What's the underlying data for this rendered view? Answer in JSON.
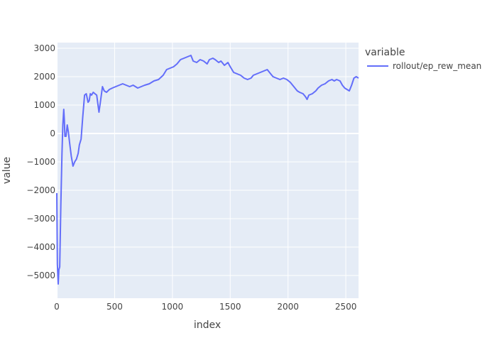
{
  "chart_data": {
    "type": "line",
    "xlabel": "index",
    "ylabel": "value",
    "xlim": [
      0,
      2610
    ],
    "ylim": [
      -5800,
      3200
    ],
    "x_ticks": [
      0,
      500,
      1000,
      1500,
      2000,
      2500
    ],
    "y_ticks": [
      -5000,
      -4000,
      -3000,
      -2000,
      -1000,
      0,
      1000,
      2000,
      3000
    ],
    "x_tick_labels": [
      "0",
      "500",
      "1000",
      "1500",
      "2000",
      "2500"
    ],
    "y_tick_labels": [
      "−5000",
      "−4000",
      "−3000",
      "−2000",
      "−1000",
      "0",
      "1000",
      "2000",
      "3000"
    ],
    "grid": true,
    "legend": {
      "title": "variable",
      "placement": "top-right-outside"
    },
    "colors": {
      "plot_background": "#E5ECF6",
      "grid": "#FFFFFF",
      "series": "#636EFA"
    },
    "series": [
      {
        "name": "rollout/ep_rew_mean",
        "points": [
          [
            0,
            -2100
          ],
          [
            5,
            -4600
          ],
          [
            12,
            -5300
          ],
          [
            18,
            -4800
          ],
          [
            25,
            -4700
          ],
          [
            35,
            -2500
          ],
          [
            45,
            -700
          ],
          [
            52,
            300
          ],
          [
            60,
            850
          ],
          [
            65,
            500
          ],
          [
            70,
            -100
          ],
          [
            80,
            -100
          ],
          [
            90,
            300
          ],
          [
            100,
            50
          ],
          [
            110,
            -300
          ],
          [
            125,
            -800
          ],
          [
            140,
            -1150
          ],
          [
            155,
            -1000
          ],
          [
            170,
            -900
          ],
          [
            185,
            -700
          ],
          [
            195,
            -400
          ],
          [
            210,
            -200
          ],
          [
            225,
            600
          ],
          [
            240,
            1350
          ],
          [
            255,
            1400
          ],
          [
            270,
            1100
          ],
          [
            280,
            1150
          ],
          [
            290,
            1400
          ],
          [
            300,
            1350
          ],
          [
            315,
            1450
          ],
          [
            330,
            1400
          ],
          [
            345,
            1350
          ],
          [
            365,
            750
          ],
          [
            380,
            1200
          ],
          [
            395,
            1650
          ],
          [
            410,
            1500
          ],
          [
            430,
            1450
          ],
          [
            455,
            1550
          ],
          [
            480,
            1600
          ],
          [
            510,
            1650
          ],
          [
            540,
            1700
          ],
          [
            570,
            1750
          ],
          [
            600,
            1700
          ],
          [
            630,
            1650
          ],
          [
            660,
            1700
          ],
          [
            700,
            1600
          ],
          [
            730,
            1650
          ],
          [
            760,
            1700
          ],
          [
            800,
            1750
          ],
          [
            840,
            1850
          ],
          [
            880,
            1900
          ],
          [
            920,
            2050
          ],
          [
            950,
            2250
          ],
          [
            980,
            2300
          ],
          [
            1010,
            2350
          ],
          [
            1040,
            2450
          ],
          [
            1070,
            2600
          ],
          [
            1100,
            2650
          ],
          [
            1130,
            2700
          ],
          [
            1160,
            2750
          ],
          [
            1180,
            2550
          ],
          [
            1210,
            2500
          ],
          [
            1240,
            2600
          ],
          [
            1270,
            2550
          ],
          [
            1300,
            2450
          ],
          [
            1320,
            2600
          ],
          [
            1350,
            2650
          ],
          [
            1370,
            2600
          ],
          [
            1400,
            2500
          ],
          [
            1420,
            2550
          ],
          [
            1450,
            2400
          ],
          [
            1480,
            2500
          ],
          [
            1500,
            2350
          ],
          [
            1530,
            2150
          ],
          [
            1560,
            2100
          ],
          [
            1590,
            2050
          ],
          [
            1620,
            1950
          ],
          [
            1650,
            1900
          ],
          [
            1680,
            1950
          ],
          [
            1700,
            2050
          ],
          [
            1730,
            2100
          ],
          [
            1760,
            2150
          ],
          [
            1790,
            2200
          ],
          [
            1820,
            2250
          ],
          [
            1850,
            2100
          ],
          [
            1870,
            2000
          ],
          [
            1900,
            1950
          ],
          [
            1930,
            1900
          ],
          [
            1960,
            1950
          ],
          [
            1990,
            1900
          ],
          [
            2020,
            1800
          ],
          [
            2050,
            1650
          ],
          [
            2080,
            1500
          ],
          [
            2100,
            1450
          ],
          [
            2130,
            1400
          ],
          [
            2150,
            1300
          ],
          [
            2165,
            1200
          ],
          [
            2180,
            1350
          ],
          [
            2210,
            1400
          ],
          [
            2240,
            1500
          ],
          [
            2260,
            1600
          ],
          [
            2290,
            1700
          ],
          [
            2320,
            1750
          ],
          [
            2350,
            1850
          ],
          [
            2380,
            1900
          ],
          [
            2400,
            1850
          ],
          [
            2420,
            1900
          ],
          [
            2450,
            1850
          ],
          [
            2470,
            1700
          ],
          [
            2490,
            1600
          ],
          [
            2510,
            1550
          ],
          [
            2530,
            1500
          ],
          [
            2550,
            1700
          ],
          [
            2570,
            1950
          ],
          [
            2590,
            2000
          ],
          [
            2610,
            1950
          ]
        ]
      }
    ]
  }
}
